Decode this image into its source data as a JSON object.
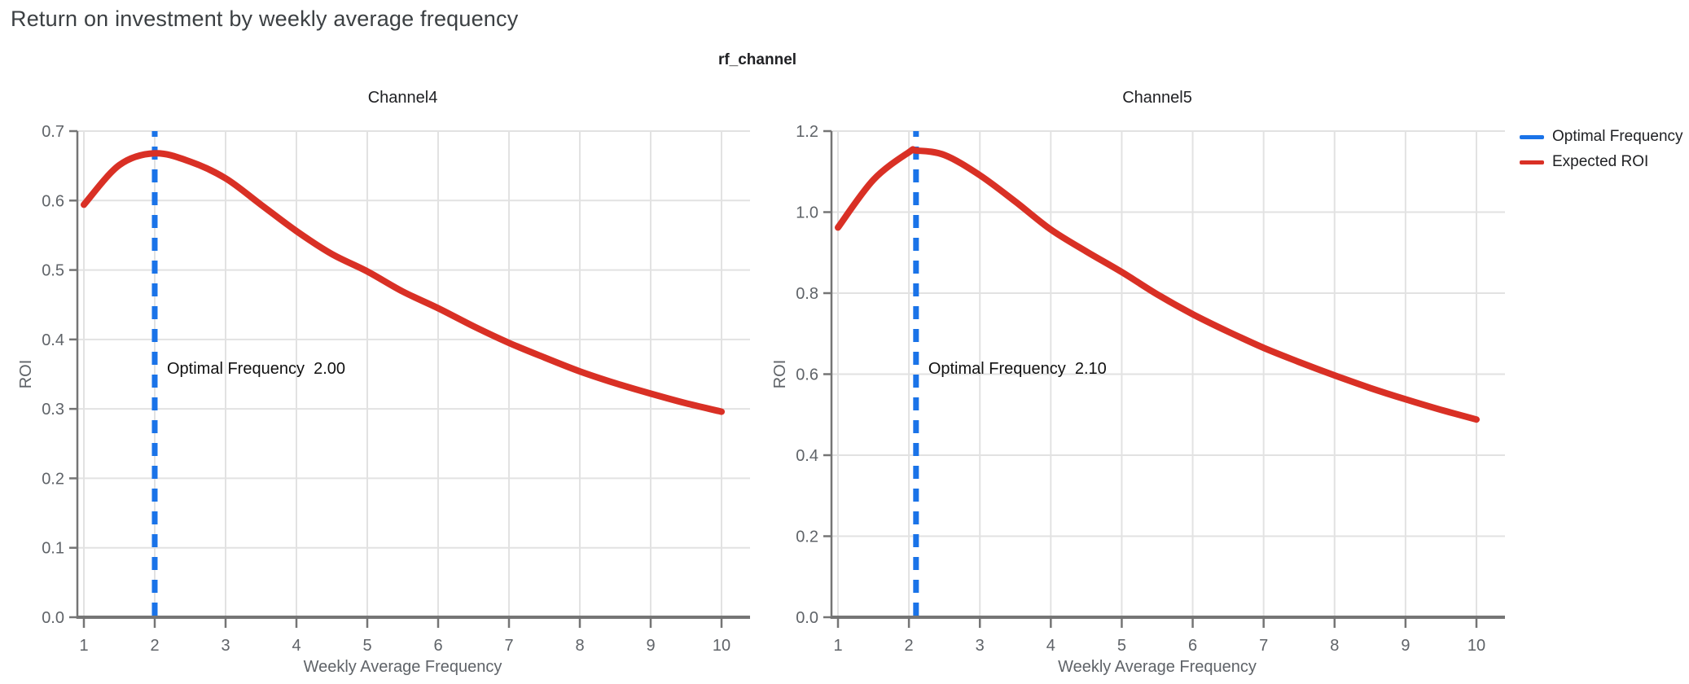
{
  "header": {
    "title": "Return on investment by weekly average frequency",
    "group_title": "rf_channel"
  },
  "legend": {
    "position": "top-right",
    "items": [
      {
        "label": "Optimal Frequency",
        "color": "#1a73e8"
      },
      {
        "label": "Expected ROI",
        "color": "#d93025"
      }
    ]
  },
  "colors": {
    "expected_roi": "#d93025",
    "optimal_frequency": "#1a73e8",
    "grid": "#e2e2e2",
    "axis": "#757575",
    "tick_label": "#5f6368",
    "title": "#3c4043",
    "text": "#202124",
    "annotation": "#111111",
    "background": "#ffffff"
  },
  "chart_data": [
    {
      "type": "line",
      "title": "Channel4",
      "xlabel": "Weekly Average Frequency",
      "ylabel": "ROI",
      "xlim": [
        1,
        10
      ],
      "ylim": [
        0.0,
        0.7
      ],
      "xticks": [
        1,
        2,
        3,
        4,
        5,
        6,
        7,
        8,
        9,
        10
      ],
      "yticks": [
        "0.0",
        "0.1",
        "0.2",
        "0.3",
        "0.4",
        "0.5",
        "0.6",
        "0.7"
      ],
      "grid": true,
      "optimal_frequency": 2.0,
      "annotation_label": "Optimal Frequency",
      "annotation_value": "2.00",
      "expected_roi": {
        "name": "Expected ROI",
        "x": [
          1,
          1.5,
          2,
          2.5,
          3,
          3.5,
          4,
          4.5,
          5,
          5.5,
          6,
          6.5,
          7,
          7.5,
          8,
          8.5,
          9,
          9.5,
          10
        ],
        "y": [
          0.594,
          0.651,
          0.668,
          0.656,
          0.632,
          0.594,
          0.556,
          0.523,
          0.498,
          0.469,
          0.445,
          0.419,
          0.395,
          0.374,
          0.354,
          0.337,
          0.322,
          0.308,
          0.296
        ]
      }
    },
    {
      "type": "line",
      "title": "Channel5",
      "xlabel": "Weekly Average Frequency",
      "ylabel": "ROI",
      "xlim": [
        1,
        10
      ],
      "ylim": [
        0.0,
        1.2
      ],
      "xticks": [
        1,
        2,
        3,
        4,
        5,
        6,
        7,
        8,
        9,
        10
      ],
      "yticks": [
        "0.0",
        "0.2",
        "0.4",
        "0.6",
        "0.8",
        "1.0",
        "1.2"
      ],
      "grid": true,
      "optimal_frequency": 2.1,
      "annotation_label": "Optimal Frequency",
      "annotation_value": "2.10",
      "expected_roi": {
        "name": "Expected ROI",
        "x": [
          1,
          1.5,
          2,
          2.1,
          2.5,
          3,
          3.5,
          4,
          4.5,
          5,
          5.5,
          6,
          6.5,
          7,
          7.5,
          8,
          8.5,
          9,
          9.5,
          10
        ],
        "y": [
          0.962,
          1.08,
          1.148,
          1.152,
          1.141,
          1.091,
          1.026,
          0.957,
          0.903,
          0.852,
          0.797,
          0.748,
          0.705,
          0.665,
          0.63,
          0.597,
          0.566,
          0.538,
          0.512,
          0.488
        ]
      }
    }
  ]
}
